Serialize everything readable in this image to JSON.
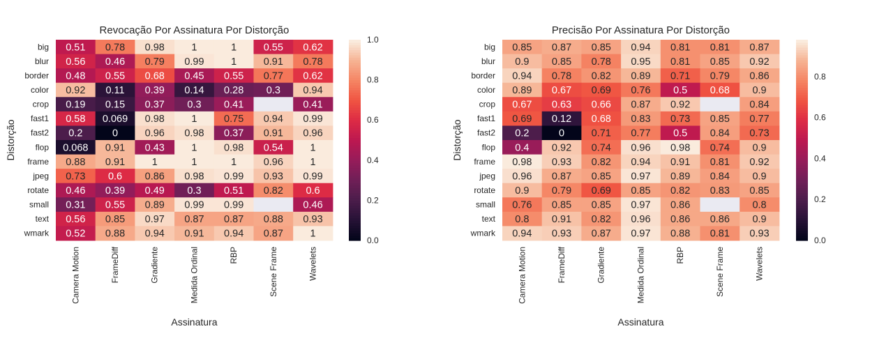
{
  "chart_data": [
    {
      "type": "heatmap",
      "title": "Revocação Por Assinatura Por Distorção",
      "xlabel": "Assinatura",
      "ylabel": "Distorção",
      "x_categories": [
        "Camera Motion",
        "FrameDiff",
        "Gradiente",
        "Medida Ordinal",
        "RBP",
        "Scene Frame",
        "Wavelets"
      ],
      "y_categories": [
        "big",
        "blur",
        "border",
        "color",
        "crop",
        "fast1",
        "fast2",
        "flop",
        "frame",
        "jpeg",
        "rotate",
        "small",
        "text",
        "wmark"
      ],
      "values": [
        [
          0.51,
          0.78,
          0.98,
          1,
          1,
          0.55,
          0.62
        ],
        [
          0.56,
          0.46,
          0.79,
          0.99,
          1,
          0.91,
          0.78
        ],
        [
          0.48,
          0.55,
          0.68,
          0.45,
          0.55,
          0.77,
          0.62
        ],
        [
          0.92,
          0.11,
          0.39,
          0.14,
          0.28,
          0.3,
          0.94
        ],
        [
          0.19,
          0.15,
          0.37,
          0.3,
          0.41,
          null,
          0.41
        ],
        [
          0.58,
          0.069,
          0.98,
          1,
          0.75,
          0.94,
          0.99
        ],
        [
          0.2,
          0,
          0.96,
          0.98,
          0.37,
          0.91,
          0.96
        ],
        [
          0.068,
          0.91,
          0.43,
          1,
          0.98,
          0.54,
          1
        ],
        [
          0.88,
          0.91,
          1,
          1,
          1,
          0.96,
          1
        ],
        [
          0.73,
          0.6,
          0.86,
          0.98,
          0.99,
          0.93,
          0.99
        ],
        [
          0.46,
          0.39,
          0.49,
          0.3,
          0.51,
          0.82,
          0.6
        ],
        [
          0.31,
          0.55,
          0.89,
          0.99,
          0.99,
          null,
          0.46
        ],
        [
          0.56,
          0.85,
          0.97,
          0.87,
          0.87,
          0.88,
          0.93
        ],
        [
          0.52,
          0.88,
          0.94,
          0.91,
          0.94,
          0.87,
          1
        ]
      ],
      "colorbar": {
        "min": 0,
        "max": 1.0,
        "ticks": [
          "0.0",
          "0.2",
          "0.4",
          "0.6",
          "0.8",
          "1.0"
        ],
        "tick_values": [
          0,
          0.2,
          0.4,
          0.6,
          0.8,
          1.0
        ]
      },
      "missing_color": "#eaeaf2"
    },
    {
      "type": "heatmap",
      "title": "Precisão Por Assinatura Por Distorção",
      "xlabel": "Assinatura",
      "ylabel": "Distorção",
      "x_categories": [
        "Camera Motion",
        "FrameDiff",
        "Gradiente",
        "Medida Ordinal",
        "RBP",
        "Scene Frame",
        "Wavelets"
      ],
      "y_categories": [
        "big",
        "blur",
        "border",
        "color",
        "crop",
        "fast1",
        "fast2",
        "flop",
        "frame",
        "jpeg",
        "rotate",
        "small",
        "text",
        "wmark"
      ],
      "values": [
        [
          0.85,
          0.87,
          0.85,
          0.94,
          0.81,
          0.81,
          0.87
        ],
        [
          0.9,
          0.85,
          0.78,
          0.95,
          0.81,
          0.85,
          0.92
        ],
        [
          0.94,
          0.78,
          0.82,
          0.89,
          0.71,
          0.79,
          0.86
        ],
        [
          0.89,
          0.67,
          0.69,
          0.76,
          0.5,
          0.68,
          0.9
        ],
        [
          0.67,
          0.63,
          0.66,
          0.87,
          0.92,
          null,
          0.84
        ],
        [
          0.69,
          0.12,
          0.68,
          0.83,
          0.73,
          0.85,
          0.77
        ],
        [
          0.2,
          0,
          0.71,
          0.77,
          0.5,
          0.84,
          0.73
        ],
        [
          0.4,
          0.92,
          0.74,
          0.96,
          0.98,
          0.74,
          0.9
        ],
        [
          0.98,
          0.93,
          0.82,
          0.94,
          0.91,
          0.81,
          0.92
        ],
        [
          0.96,
          0.87,
          0.85,
          0.97,
          0.89,
          0.84,
          0.9
        ],
        [
          0.9,
          0.79,
          0.69,
          0.85,
          0.82,
          0.83,
          0.85
        ],
        [
          0.76,
          0.85,
          0.85,
          0.97,
          0.86,
          null,
          0.8
        ],
        [
          0.8,
          0.91,
          0.82,
          0.96,
          0.86,
          0.86,
          0.9
        ],
        [
          0.94,
          0.93,
          0.87,
          0.97,
          0.88,
          0.81,
          0.93
        ]
      ],
      "colorbar": {
        "min": 0,
        "max": 0.98,
        "ticks": [
          "0.0",
          "0.2",
          "0.4",
          "0.6",
          "0.8"
        ],
        "tick_values": [
          0,
          0.2,
          0.4,
          0.6,
          0.8
        ]
      },
      "missing_color": "#eaeaf2"
    }
  ]
}
